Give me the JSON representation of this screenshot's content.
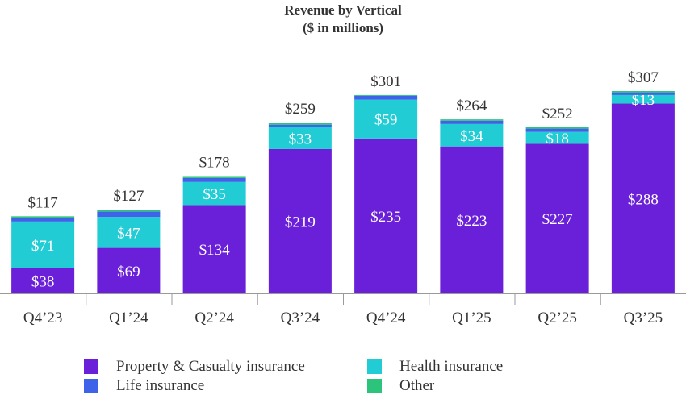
{
  "chart_data": {
    "type": "bar",
    "stacked": true,
    "title": "Revenue by Vertical",
    "subtitle": "($ in millions)",
    "categories": [
      "Q4’23",
      "Q1’24",
      "Q2’24",
      "Q3’24",
      "Q4’24",
      "Q1’25",
      "Q2’25",
      "Q3’25"
    ],
    "totals": [
      117,
      127,
      178,
      259,
      301,
      264,
      252,
      307
    ],
    "series": [
      {
        "name": "Property & Casualty insurance",
        "color": "#6a1fd8",
        "values": [
          38,
          69,
          134,
          219,
          235,
          223,
          227,
          288
        ]
      },
      {
        "name": "Health insurance",
        "color": "#22ccd4",
        "values": [
          71,
          47,
          35,
          33,
          59,
          34,
          18,
          13
        ]
      },
      {
        "name": "Life insurance",
        "color": "#3f63e8",
        "values": [
          6,
          8,
          6,
          4,
          6,
          5,
          5,
          4
        ]
      },
      {
        "name": "Other",
        "color": "#2cc47a",
        "values": [
          2,
          3,
          3,
          3,
          1,
          2,
          2,
          2
        ]
      }
    ],
    "labeled_series": [
      "Property & Casualty insurance",
      "Health insurance"
    ],
    "xlabel": "",
    "ylabel": "",
    "ylim": [
      0,
      310
    ],
    "grid": false,
    "legend_position": "bottom"
  }
}
